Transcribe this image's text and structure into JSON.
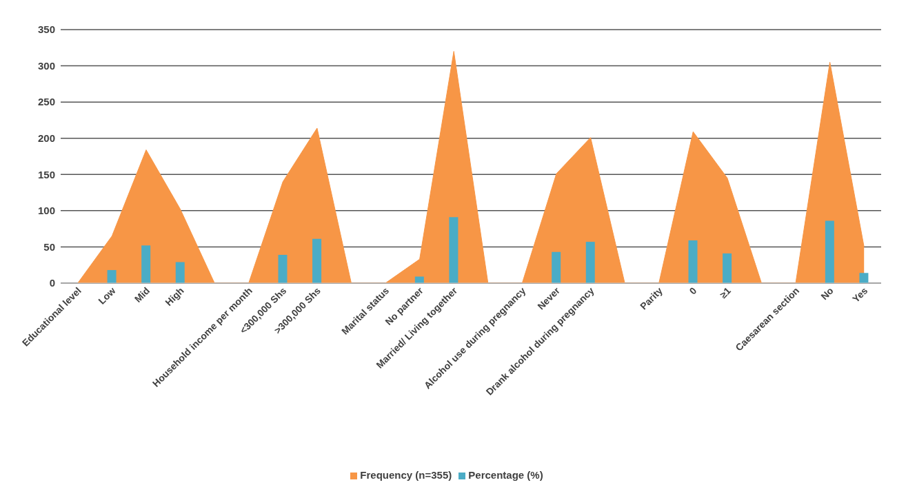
{
  "chart_data": {
    "type": "area",
    "categories": [
      "Educational level",
      "Low",
      "Mid",
      "High",
      null,
      "Household income per month",
      "<300,000 Shs",
      ">300,000 Shs",
      null,
      "Marital status",
      "No partner",
      "Married/ Living together",
      null,
      "Alcohol use during pregnancy",
      "Never",
      "Drank alcohol during pregnancy",
      null,
      "Parity",
      "0",
      "≥1",
      null,
      "Caesarean section",
      "No",
      "Yes"
    ],
    "series": [
      {
        "name": "Frequency (n=355)",
        "color": "#f79646",
        "values": [
          0,
          65,
          184,
          102,
          0,
          0,
          140,
          214,
          0,
          0,
          33,
          320,
          0,
          0,
          151,
          201,
          0,
          0,
          209,
          145,
          0,
          0,
          305,
          50
        ]
      },
      {
        "name": "Percentage (%)",
        "type": "bar",
        "color": "#4bacc6",
        "values": [
          null,
          18,
          52,
          29,
          null,
          null,
          39,
          61,
          null,
          null,
          9,
          91,
          null,
          null,
          43,
          57,
          null,
          null,
          59,
          41,
          null,
          null,
          86,
          14
        ]
      }
    ],
    "ylim": [
      0,
      350
    ],
    "yticks": [
      0,
      50,
      100,
      150,
      200,
      250,
      300,
      350
    ],
    "grid": "y",
    "legend": "bottom"
  }
}
